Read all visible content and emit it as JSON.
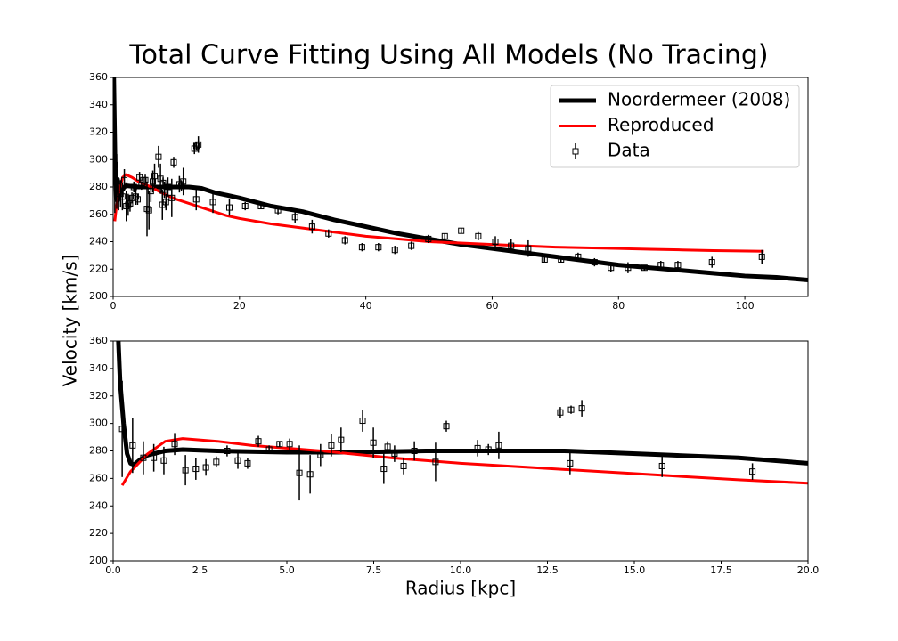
{
  "figure": {
    "title": "Total Curve Fitting Using All Models (No Tracing)",
    "ylabel": "Velocity [km/s]"
  },
  "chart_data": [
    {
      "type": "line",
      "xlim": [
        0,
        110
      ],
      "xticks": [
        0,
        20,
        40,
        60,
        80,
        100
      ],
      "ylim": [
        200,
        360
      ],
      "yticks": [
        200,
        220,
        240,
        260,
        280,
        300,
        320,
        340,
        360
      ],
      "legend": "upper right",
      "series": [
        {
          "name": "Noordermeer (2008)",
          "color": "#000000",
          "x": [
            0.1,
            0.2,
            0.3,
            0.5,
            0.7,
            1,
            2,
            4,
            6,
            8,
            10,
            12,
            14,
            16,
            18,
            20,
            25,
            30,
            35,
            40,
            45,
            50,
            55,
            60,
            65,
            70,
            75,
            80,
            85,
            90,
            95,
            100,
            105,
            110
          ],
          "values": [
            360,
            330,
            300,
            271,
            270,
            276,
            281,
            280,
            280,
            280,
            280,
            280,
            279,
            276,
            274,
            272,
            266,
            262,
            256,
            251,
            246,
            242,
            238,
            235,
            232,
            229,
            226,
            223,
            221,
            219,
            217,
            215,
            214,
            212
          ]
        },
        {
          "name": "Reproduced",
          "color": "#ff0000",
          "x": [
            0.26,
            0.5,
            1,
            1.5,
            2,
            3,
            4,
            6,
            8,
            10,
            12,
            14,
            16,
            18,
            20,
            25,
            30,
            35,
            40,
            45,
            50,
            55,
            60,
            65,
            70,
            75,
            80,
            85,
            90,
            95,
            103
          ],
          "values": [
            255,
            265,
            278,
            287,
            289,
            287,
            284,
            280,
            275,
            271,
            268,
            265,
            262,
            259,
            257,
            253,
            250,
            247,
            244,
            242,
            240,
            239,
            238,
            237,
            236,
            235.5,
            235,
            234.5,
            234,
            233.5,
            233
          ]
        },
        {
          "name": "Data",
          "color": "#000000",
          "x": [
            0.26,
            0.56,
            0.87,
            1.17,
            1.46,
            1.77,
            2.08,
            2.38,
            2.67,
            2.97,
            3.28,
            3.59,
            3.87,
            4.18,
            4.49,
            4.79,
            5.08,
            5.36,
            5.67,
            5.97,
            6.28,
            6.56,
            7.18,
            7.49,
            7.79,
            7.9,
            8.1,
            8.36,
            8.67,
            9.28,
            9.59,
            10.49,
            10.8,
            11.1,
            12.87,
            13.15,
            13.18,
            13.49,
            15.8,
            18.4,
            20.9,
            23.4,
            26.1,
            28.8,
            31.5,
            34.1,
            36.7,
            39.4,
            42,
            44.6,
            47.2,
            49.9,
            52.5,
            55.1,
            57.8,
            60.5,
            63,
            65.7,
            68.3,
            70.9,
            73.6,
            76.2,
            78.8,
            81.5,
            84.1,
            86.7,
            89.4,
            94.8,
            102.7
          ],
          "values": [
            296,
            284,
            275,
            275,
            273,
            285,
            266,
            267,
            268,
            272,
            280,
            273,
            271,
            287,
            281,
            285,
            285,
            264,
            263,
            277,
            284,
            288,
            302,
            286,
            267,
            283,
            278,
            269,
            280,
            272,
            298,
            282,
            281,
            284,
            308,
            271,
            310,
            311,
            269,
            265,
            266,
            266,
            263,
            258,
            251,
            246,
            241,
            236,
            236,
            234,
            237,
            242,
            244,
            248,
            244,
            240,
            237,
            235,
            227,
            227,
            229,
            225,
            221,
            221,
            221,
            223,
            223,
            225,
            229
          ],
          "errors": [
            35,
            20,
            12,
            10,
            10,
            8,
            11,
            8,
            6,
            4,
            4,
            6,
            4,
            4,
            3,
            2,
            4,
            20,
            14,
            8,
            8,
            9,
            8,
            11,
            11,
            4,
            6,
            6,
            7,
            14,
            4,
            6,
            4,
            10,
            4,
            8,
            3,
            6,
            8,
            6,
            3,
            2,
            3,
            4,
            5,
            3,
            3,
            3,
            3,
            3,
            3,
            3,
            2,
            2,
            3,
            4,
            5,
            6,
            2,
            2,
            3,
            3,
            3,
            4,
            2,
            3,
            3,
            4,
            5
          ]
        }
      ]
    },
    {
      "type": "line",
      "xlabel": "Radius [kpc]",
      "xlim": [
        0,
        20
      ],
      "xticks": [
        {
          "value": 0,
          "label": "0.0"
        },
        2.5,
        {
          "value": 5,
          "label": "5.0"
        },
        7.5,
        {
          "value": 10,
          "label": "10.0"
        },
        12.5,
        {
          "value": 15,
          "label": "15.0"
        },
        17.5,
        {
          "value": 20,
          "label": "20.0"
        }
      ],
      "ylim": [
        200,
        360
      ],
      "yticks": [
        200,
        220,
        240,
        260,
        280,
        300,
        320,
        340,
        360
      ],
      "series": [
        {
          "color": "#000000",
          "x": [
            0.15,
            0.2,
            0.3,
            0.4,
            0.5,
            0.6,
            0.8,
            1,
            1.5,
            2,
            3,
            5,
            7,
            9,
            11,
            13,
            14,
            16,
            18,
            19,
            20
          ],
          "values": [
            360,
            330,
            300,
            278,
            271,
            270,
            274,
            277,
            280,
            281,
            280,
            279,
            279,
            280,
            280,
            280,
            279,
            277,
            275,
            273,
            271
          ]
        },
        {
          "color": "#ff0000",
          "x": [
            0.26,
            0.5,
            1,
            1.5,
            2,
            3,
            4,
            6,
            8,
            10,
            12,
            14,
            16,
            18,
            20
          ],
          "values": [
            255,
            265,
            278,
            287,
            289,
            287,
            284,
            280,
            275,
            271,
            268,
            265,
            262,
            259,
            256.5
          ]
        },
        {
          "color": "#000000",
          "x": [
            0.26,
            0.56,
            0.87,
            1.17,
            1.46,
            1.77,
            2.08,
            2.38,
            2.67,
            2.97,
            3.28,
            3.59,
            3.87,
            4.18,
            4.49,
            4.79,
            5.08,
            5.36,
            5.67,
            5.97,
            6.28,
            6.56,
            7.18,
            7.49,
            7.79,
            7.9,
            8.1,
            8.36,
            8.67,
            9.28,
            9.59,
            10.49,
            10.8,
            11.1,
            12.87,
            13.15,
            13.18,
            13.49,
            15.8,
            18.4
          ],
          "values": [
            296,
            284,
            275,
            275,
            273,
            285,
            266,
            267,
            268,
            272,
            280,
            273,
            271,
            287,
            281,
            285,
            285,
            264,
            263,
            277,
            284,
            288,
            302,
            286,
            267,
            283,
            278,
            269,
            280,
            272,
            298,
            282,
            281,
            284,
            308,
            271,
            310,
            311,
            269,
            265
          ],
          "errors": [
            35,
            20,
            12,
            10,
            10,
            8,
            11,
            8,
            6,
            4,
            4,
            6,
            4,
            4,
            3,
            2,
            4,
            20,
            14,
            8,
            8,
            9,
            8,
            11,
            11,
            4,
            6,
            6,
            7,
            14,
            4,
            6,
            4,
            10,
            4,
            8,
            3,
            6,
            8,
            6
          ]
        }
      ]
    }
  ]
}
